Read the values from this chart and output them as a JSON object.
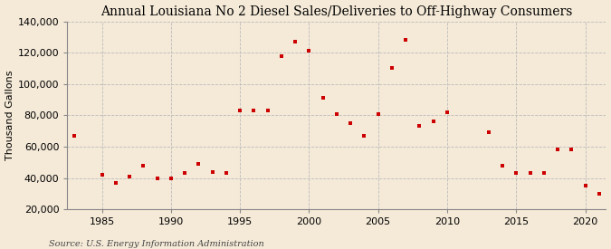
{
  "title": "Annual Louisiana No 2 Diesel Sales/Deliveries to Off-Highway Consumers",
  "ylabel": "Thousand Gallons",
  "source": "Source: U.S. Energy Information Administration",
  "background_color": "#f5ead8",
  "marker_color": "#cc0000",
  "years": [
    1983,
    1985,
    1986,
    1987,
    1988,
    1989,
    1990,
    1991,
    1992,
    1993,
    1994,
    1995,
    1996,
    1997,
    1998,
    1999,
    2000,
    2001,
    2002,
    2003,
    2004,
    2005,
    2006,
    2007,
    2008,
    2009,
    2010,
    2013,
    2014,
    2015,
    2016,
    2017,
    2018,
    2019,
    2020,
    2021
  ],
  "values": [
    67000,
    42000,
    37000,
    41000,
    48000,
    40000,
    40000,
    43000,
    49000,
    44000,
    43000,
    83000,
    83000,
    83000,
    118000,
    127000,
    121000,
    91000,
    81000,
    75000,
    67000,
    81000,
    110000,
    128000,
    73000,
    76000,
    82000,
    69000,
    48000,
    43000,
    43000,
    43000,
    58000,
    58000,
    35000,
    30000
  ],
  "xlim": [
    1982.5,
    2021.5
  ],
  "ylim": [
    20000,
    140000
  ],
  "yticks": [
    20000,
    40000,
    60000,
    80000,
    100000,
    120000,
    140000
  ],
  "xticks": [
    1985,
    1990,
    1995,
    2000,
    2005,
    2010,
    2015,
    2020
  ],
  "grid_color": "#bbbbbb",
  "title_fontsize": 10,
  "label_fontsize": 8,
  "tick_fontsize": 8,
  "source_fontsize": 7
}
